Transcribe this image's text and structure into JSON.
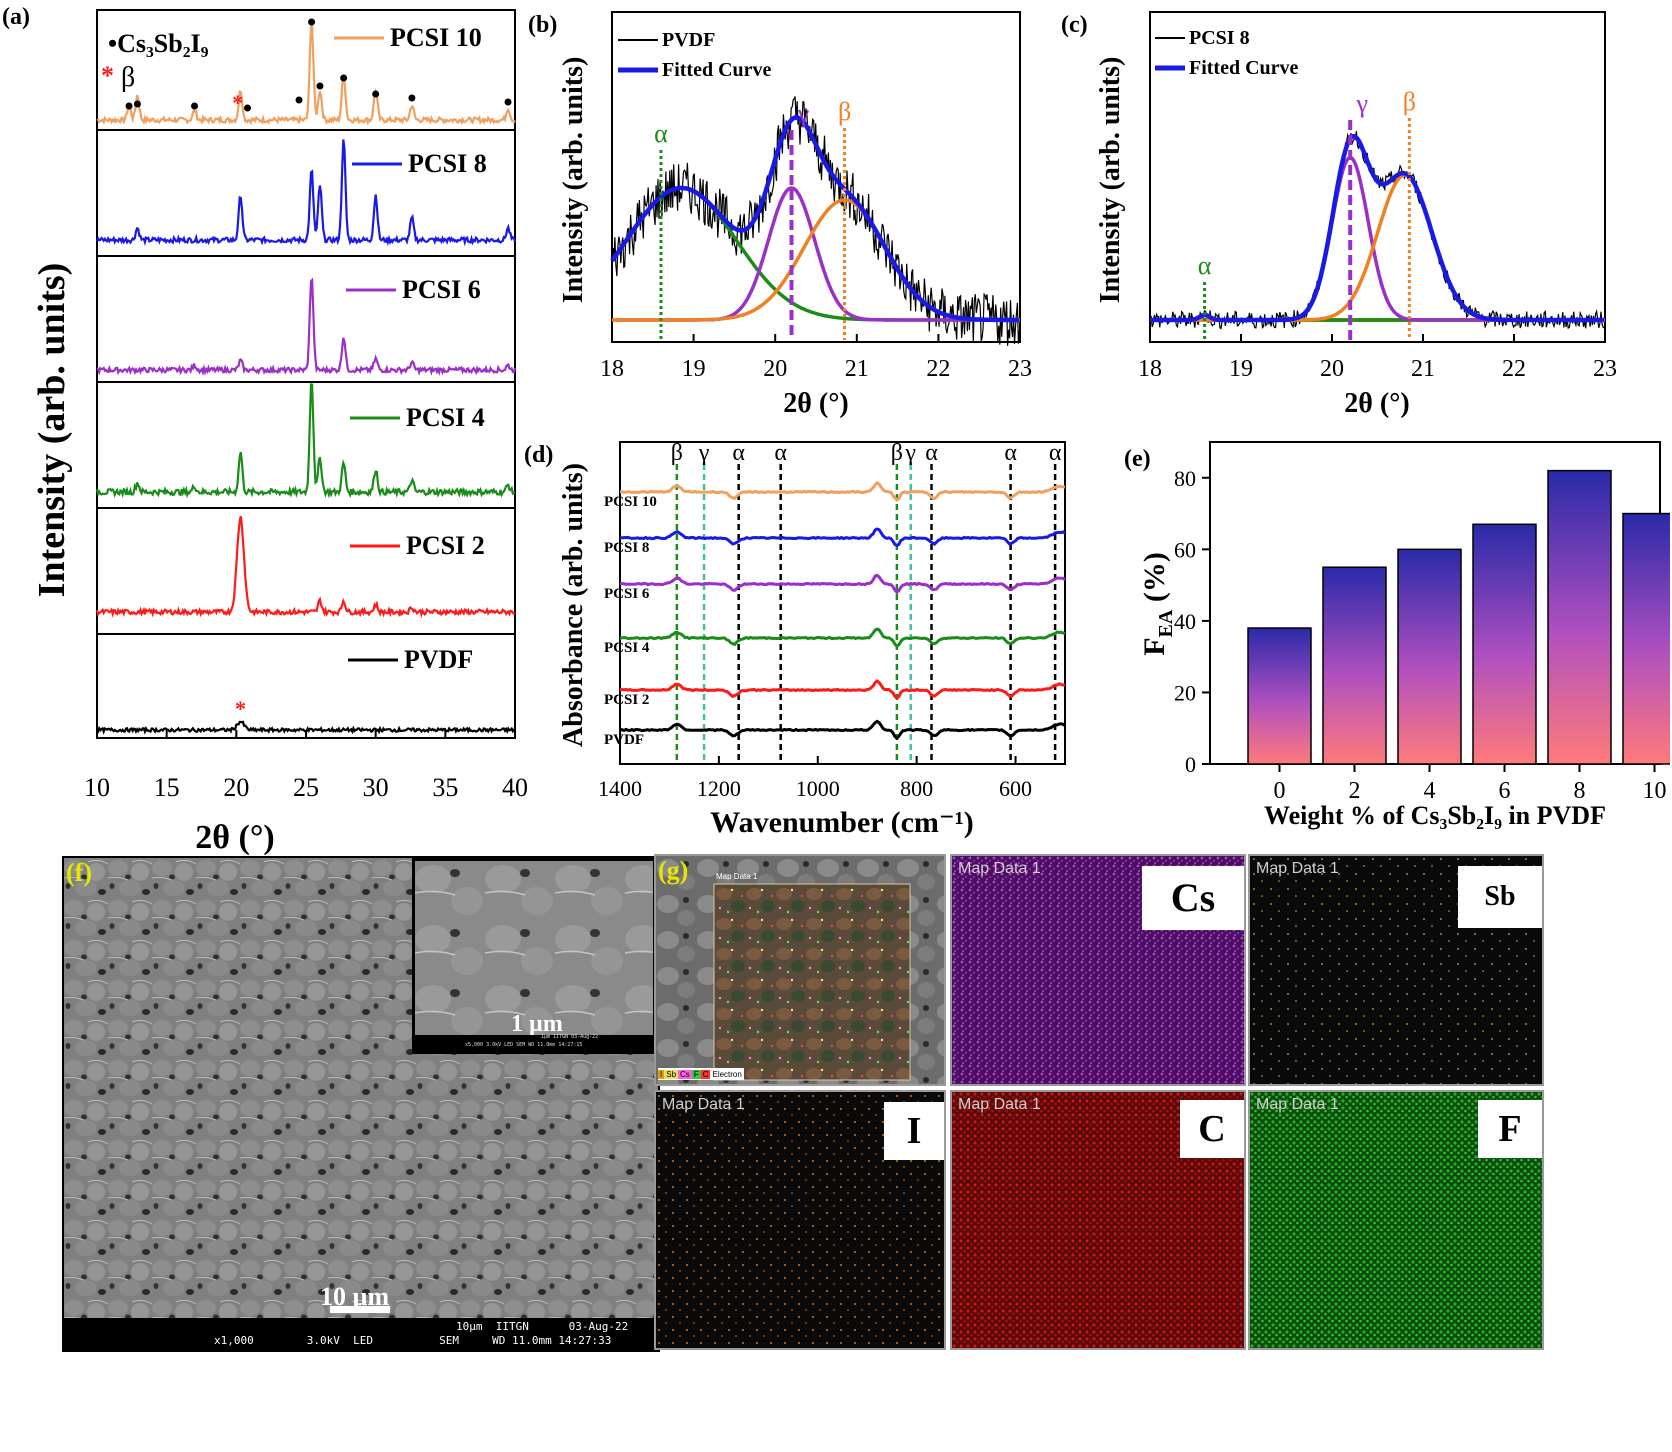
{
  "colors": {
    "pvdf": "#000000",
    "pcsi2": "#ff1a1a",
    "pcsi4": "#1a8c1a",
    "pcsi6": "#9b30c8",
    "pcsi8": "#1a1ae6",
    "pcsi10": "#f0a060",
    "alpha": "#1a8c1a",
    "gamma": "#9b30c8",
    "beta": "#f08020",
    "fit": "#1a1ae6",
    "baseline": "#a0a000",
    "bar_top": "#2a2aa8",
    "bar_bottom": "#ff7a7a",
    "cs_map": "#b040d0",
    "i_map": "#d07020",
    "c_map": "#d01818",
    "f_map": "#20b020",
    "sb_map": "#c0c040"
  },
  "panels": {
    "a": "(a)",
    "b": "(b)",
    "c": "(c)",
    "d": "(d)",
    "e": "(e)",
    "f": "(f)",
    "g": "(g)"
  },
  "chart_data": [
    {
      "id": "a",
      "type": "line",
      "xlabel": "2θ (°)",
      "ylabel": "Intensity (arb. units)",
      "xlim": [
        10,
        40
      ],
      "xticks": [
        "10",
        "15",
        "20",
        "25",
        "30",
        "35",
        "40"
      ],
      "legend_cs": "•Cs₃Sb₂I₉",
      "legend_star": "*",
      "legend_beta": "β",
      "series": [
        {
          "name": "PCSI 10",
          "peaks": [
            [
              12.3,
              0.15
            ],
            [
              12.9,
              0.25
            ],
            [
              17.0,
              0.1
            ],
            [
              20.3,
              0.3
            ],
            [
              25.4,
              1.0
            ],
            [
              26.0,
              0.3
            ],
            [
              27.7,
              0.45
            ],
            [
              30.0,
              0.3
            ],
            [
              32.6,
              0.15
            ],
            [
              39.5,
              0.12
            ]
          ]
        },
        {
          "name": "PCSI 8",
          "peaks": [
            [
              12.9,
              0.12
            ],
            [
              20.3,
              0.45
            ],
            [
              25.4,
              0.7
            ],
            [
              26.0,
              0.55
            ],
            [
              27.7,
              1.0
            ],
            [
              30.0,
              0.45
            ],
            [
              32.6,
              0.22
            ],
            [
              39.5,
              0.12
            ]
          ]
        },
        {
          "name": "PCSI 6",
          "peaks": [
            [
              17.0,
              0.05
            ],
            [
              20.3,
              0.1
            ],
            [
              25.4,
              1.0
            ],
            [
              27.7,
              0.35
            ],
            [
              30.0,
              0.12
            ],
            [
              32.6,
              0.08
            ],
            [
              39.5,
              0.05
            ]
          ]
        },
        {
          "name": "PCSI 4",
          "peaks": [
            [
              12.9,
              0.08
            ],
            [
              17.0,
              0.05
            ],
            [
              20.3,
              0.35
            ],
            [
              25.4,
              1.0
            ],
            [
              26.0,
              0.3
            ],
            [
              27.7,
              0.25
            ],
            [
              30.0,
              0.2
            ],
            [
              32.6,
              0.1
            ],
            [
              39.5,
              0.06
            ]
          ]
        },
        {
          "name": "PCSI 2",
          "peaks": [
            [
              20.3,
              1.0
            ],
            [
              26.0,
              0.12
            ],
            [
              27.7,
              0.12
            ],
            [
              30.0,
              0.08
            ],
            [
              32.6,
              0.05
            ]
          ]
        },
        {
          "name": "PVDF",
          "peaks": [
            [
              20.3,
              0.3
            ]
          ]
        }
      ]
    },
    {
      "id": "b",
      "type": "line",
      "xlabel": "2θ (°)",
      "ylabel": "Intensity (arb. units)",
      "xlim": [
        18,
        23
      ],
      "xticks": [
        "18",
        "19",
        "20",
        "21",
        "22",
        "23"
      ],
      "legend": [
        "PVDF",
        "Fitted Curve"
      ],
      "phase_lines": [
        {
          "label": "α",
          "x": 18.6
        },
        {
          "label": "γ",
          "x": 20.2
        },
        {
          "label": "β",
          "x": 20.85
        }
      ],
      "components": [
        {
          "phase": "α",
          "center": 18.85,
          "width": 0.95,
          "height": 0.55
        },
        {
          "phase": "γ",
          "center": 20.2,
          "width": 0.4,
          "height": 0.55
        },
        {
          "phase": "β",
          "center": 20.85,
          "width": 0.7,
          "height": 0.5
        }
      ]
    },
    {
      "id": "c",
      "type": "line",
      "xlabel": "2θ (°)",
      "ylabel": "Intensity (arb. units)",
      "xlim": [
        18,
        23
      ],
      "xticks": [
        "18",
        "19",
        "20",
        "21",
        "22",
        "23"
      ],
      "legend": [
        "PCSI 8",
        "Fitted Curve"
      ],
      "phase_lines": [
        {
          "label": "α",
          "x": 18.6
        },
        {
          "label": "γ",
          "x": 20.2
        },
        {
          "label": "β",
          "x": 20.85
        }
      ],
      "components": [
        {
          "phase": "α",
          "center": 18.6,
          "width": 0.08,
          "height": 0.02
        },
        {
          "phase": "γ",
          "center": 20.2,
          "width": 0.28,
          "height": 0.65
        },
        {
          "phase": "β",
          "center": 20.8,
          "width": 0.42,
          "height": 0.58
        }
      ]
    },
    {
      "id": "d",
      "type": "line",
      "xlabel": "Wavenumber (cm⁻¹)",
      "ylabel": "Absorbance (arb. units)",
      "xlim": [
        1400,
        500
      ],
      "xticks": [
        "1400",
        "1200",
        "1000",
        "800",
        "600"
      ],
      "series": [
        "PCSI 10",
        "PCSI 8",
        "PCSI 6",
        "PCSI 4",
        "PCSI 2",
        "PVDF"
      ],
      "bands": [
        {
          "label": "β",
          "x": 1285
        },
        {
          "label": "γ",
          "x": 1230
        },
        {
          "label": "α",
          "x": 1160
        },
        {
          "label": "α",
          "x": 1075
        },
        {
          "label": "β",
          "x": 840
        },
        {
          "label": "γ",
          "x": 812
        },
        {
          "label": "α",
          "x": 770
        },
        {
          "label": "α",
          "x": 610
        },
        {
          "label": "α",
          "x": 520
        }
      ]
    },
    {
      "id": "e",
      "type": "bar",
      "xlabel": "Weight % of Cs₃Sb₂I₉ in PVDF",
      "ylabel": "F",
      "ylabel_sub": "EA",
      "ylabel_unit": " (%)",
      "categories": [
        "0",
        "2",
        "4",
        "6",
        "8",
        "10"
      ],
      "values": [
        38,
        55,
        60,
        67,
        82,
        70
      ],
      "ylim": [
        0,
        90
      ],
      "yticks": [
        "0",
        "20",
        "40",
        "60",
        "80"
      ]
    }
  ],
  "sem_f": {
    "scale_main": "10 µm",
    "scale_inset": "1 µm",
    "footer_main": "x1,000        3.0kV  LED          SEM     WD 11.0mm 14:27:33",
    "footer_main_top": "10µm  IITGN      03-Aug-22",
    "footer_inset": "x5,000  3.0kV LED   SEM  WD 11.0mm 14:27:15",
    "footer_inset_top": "1µm  IITGN   03-Aug-22"
  },
  "sem_g": {
    "overlay_header": "Map Data 1",
    "legend_items": [
      "I",
      "Sb",
      "Cs",
      "F",
      "C",
      "Electron"
    ],
    "tiles": [
      {
        "header": "Map Data 1",
        "element": "Cs"
      },
      {
        "header": "Map Data 1",
        "element": "Sb"
      },
      {
        "header": "Map Data 1",
        "element": "I"
      },
      {
        "header": "Map Data 1",
        "element": "C"
      },
      {
        "header": "Map Data 1",
        "element": "F"
      }
    ]
  }
}
